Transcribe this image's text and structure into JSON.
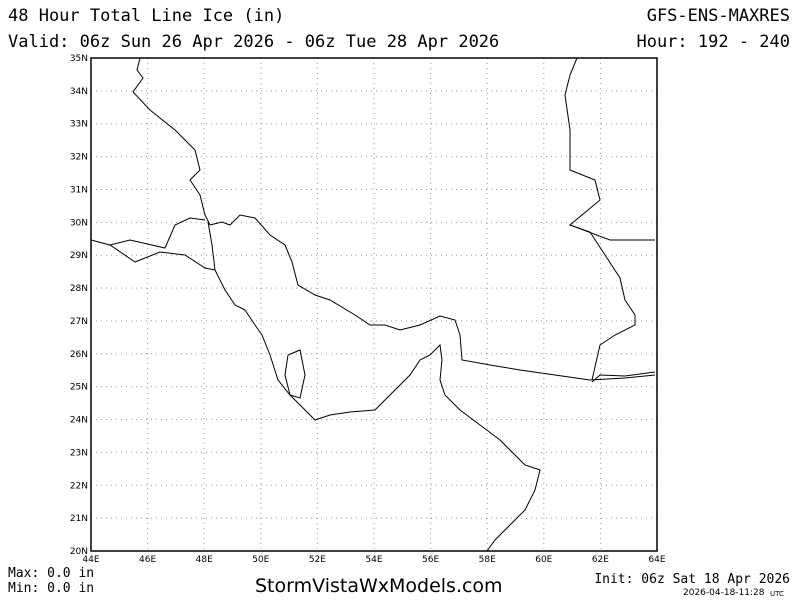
{
  "header": {
    "title": "48 Hour Total Line Ice (in)",
    "model": "GFS-ENS-MAXRES",
    "valid": "Valid: 06z Sun 26 Apr 2026 - 06z Tue 28 Apr 2026",
    "hour": "Hour: 192 - 240"
  },
  "map": {
    "lat_labels": [
      "35N",
      "34N",
      "33N",
      "32N",
      "31N",
      "30N",
      "29N",
      "28N",
      "27N",
      "26N",
      "25N",
      "24N",
      "23N",
      "22N",
      "21N",
      "20N"
    ],
    "lon_labels": [
      "44E",
      "46E",
      "48E",
      "50E",
      "52E",
      "54E",
      "56E",
      "58E",
      "60E",
      "62E",
      "64E"
    ]
  },
  "footer": {
    "max": "Max: 0.0 in",
    "min": "Min: 0.0 in",
    "site": "StormVistaWxModels.com",
    "init": "Init: 06z Sat 18 Apr 2026",
    "timestamp": "2026-04-18-11:28",
    "tz": "UTC"
  }
}
